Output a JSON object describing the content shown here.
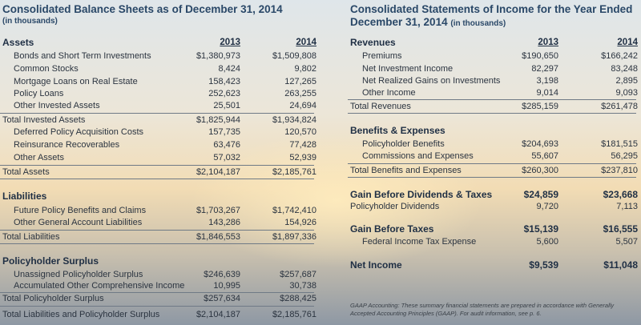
{
  "left": {
    "title": "Consolidated Balance Sheets as of December 31, 2014",
    "subtitle": "(in thousands)",
    "columns": [
      "2013",
      "2014"
    ],
    "rows": [
      {
        "label": "Assets"
      },
      {
        "label": "Bonds and Short Term Investments",
        "values": [
          "$1,380,973",
          "$1,509,808"
        ]
      },
      {
        "label": "Common Stocks",
        "values": [
          "8,424",
          "9,802"
        ]
      },
      {
        "label": "Mortgage Loans on Real Estate",
        "values": [
          "158,423",
          "127,265"
        ]
      },
      {
        "label": "Policy Loans",
        "values": [
          "252,623",
          "263,255"
        ]
      },
      {
        "label": "Other Invested Assets",
        "values": [
          "25,501",
          "24,694"
        ]
      },
      {
        "label": "Total Invested Assets",
        "values": [
          "$1,825,944",
          "$1,934,824"
        ]
      },
      {
        "label": "Deferred Policy Acquisition Costs",
        "values": [
          "157,735",
          "120,570"
        ]
      },
      {
        "label": "Reinsurance Recoverables",
        "values": [
          "63,476",
          "77,428"
        ]
      },
      {
        "label": "Other Assets",
        "values": [
          "57,032",
          "52,939"
        ]
      },
      {
        "label": "Total Assets",
        "values": [
          "$2,104,187",
          "$2,185,761"
        ]
      },
      {
        "label": "Liabilities"
      },
      {
        "label": "Future Policy Benefits and Claims",
        "values": [
          "$1,703,267",
          "$1,742,410"
        ]
      },
      {
        "label": "Other General Account Liabilities",
        "values": [
          "143,286",
          "154,926"
        ]
      },
      {
        "label": "Total Liabilities",
        "values": [
          "$1,846,553",
          "$1,897,336"
        ]
      },
      {
        "label": "Policyholder Surplus"
      },
      {
        "label": "Unassigned Policyholder Surplus",
        "values": [
          "$246,639",
          "$257,687"
        ]
      },
      {
        "label": "Accumulated Other Comprehensive Income",
        "values": [
          "10,995",
          "30,738"
        ]
      },
      {
        "label": "Total Policyholder Surplus",
        "values": [
          "$257,634",
          "$288,425"
        ]
      },
      {
        "label": "Total Liabilities and Policyholder Surplus",
        "values": [
          "$2,104,187",
          "$2,185,761"
        ]
      }
    ]
  },
  "right": {
    "title_lines": [
      "Consolidated Statements of Income for the Year Ended",
      "December 31, 2014"
    ],
    "subtitle": "(in thousands)",
    "columns": [
      "2013",
      "2014"
    ],
    "rows": [
      {
        "label": "Revenues"
      },
      {
        "label": "Premiums",
        "values": [
          "$190,650",
          "$166,242"
        ]
      },
      {
        "label": "Net Investment Income",
        "values": [
          "82,297",
          "83,248"
        ]
      },
      {
        "label": "Net Realized Gains on Investments",
        "values": [
          "3,198",
          "2,895"
        ]
      },
      {
        "label": "Other Income",
        "values": [
          "9,014",
          "9,093"
        ]
      },
      {
        "label": "Total Revenues",
        "values": [
          "$285,159",
          "$261,478"
        ]
      },
      {
        "label": "Benefits & Expenses"
      },
      {
        "label": "Policyholder Benefits",
        "values": [
          "$204,693",
          "$181,515"
        ]
      },
      {
        "label": "Commissions and Expenses",
        "values": [
          "55,607",
          "56,295"
        ]
      },
      {
        "label": "Total Benefits and Expenses",
        "values": [
          "$260,300",
          "$237,810"
        ]
      },
      {
        "label": "Gain Before Dividends & Taxes",
        "values": [
          "$24,859",
          "$23,668"
        ]
      },
      {
        "label": "Policyholder Dividends",
        "values": [
          "9,720",
          "7,113"
        ]
      },
      {
        "label": "Gain Before Taxes",
        "values": [
          "$15,139",
          "$16,555"
        ]
      },
      {
        "label": "Federal Income Tax Expense",
        "values": [
          "5,600",
          "5,507"
        ]
      },
      {
        "label": "Net Income",
        "values": [
          "$9,539",
          "$11,048"
        ]
      }
    ],
    "footnote": "GAAP Accounting: These summary financial statements are prepared in accordance with Generally Accepted Accounting Principles (GAAP). For audit information, see p. 6."
  }
}
